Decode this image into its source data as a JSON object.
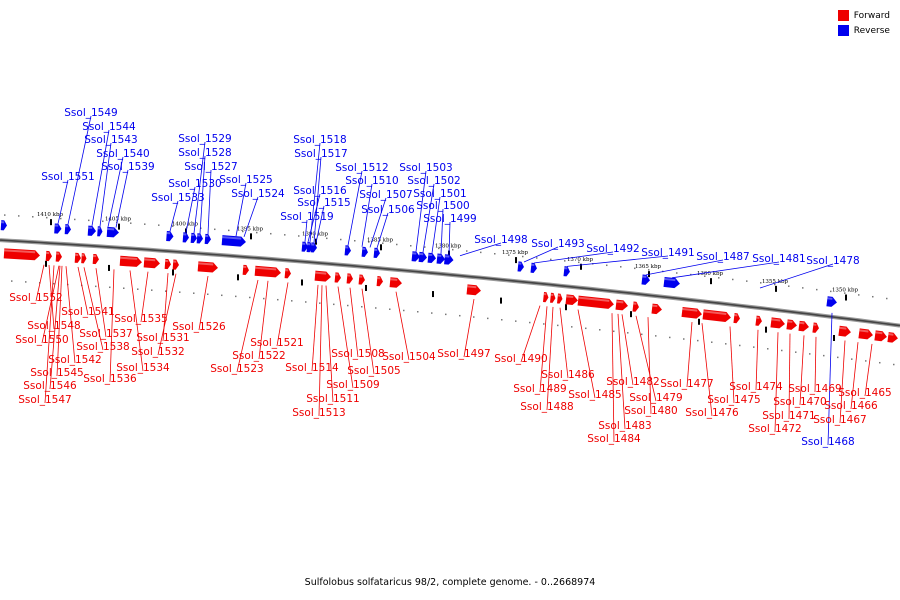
{
  "legend": {
    "forward": {
      "label": "Forward",
      "color": "#ee0000"
    },
    "reverse": {
      "label": "Reverse",
      "color": "#0000ee"
    }
  },
  "caption": "Sulfolobus solfataricus 98/2, complete genome. - 0..2668974",
  "ruler_ticks": [
    "1410 kbp",
    "1405 kbp",
    "1400 kbp",
    "1395 kbp",
    "1390 kbp",
    "1385 kbp",
    "1380 kbp",
    "1375 kbp",
    "1370 kbp",
    "1365 kbp",
    "1360 kbp",
    "1355 kbp",
    "1350 kbp"
  ],
  "reverse_genes": [
    "Ssol_1551",
    "Ssol_1549",
    "Ssol_1544",
    "Ssol_1543",
    "Ssol_1540",
    "Ssol_1539",
    "Ssol_1533",
    "Ssol_1530",
    "Ssol_1529",
    "Ssol_1528",
    "Ssol_1527",
    "Ssol_1525",
    "Ssol_1524",
    "Ssol_1519",
    "Ssol_1518",
    "Ssol_1517",
    "Ssol_1516",
    "Ssol_1515",
    "Ssol_1512",
    "Ssol_1510",
    "Ssol_1507",
    "Ssol_1506",
    "Ssol_1503",
    "Ssol_1502",
    "Ssol_1501",
    "Ssol_1500",
    "Ssol_1499",
    "Ssol_1498",
    "Ssol_1493",
    "Ssol_1492",
    "Ssol_1491",
    "Ssol_1487",
    "Ssol_1481",
    "Ssol_1478",
    "Ssol_1468"
  ],
  "forward_genes": [
    "Ssol_1552",
    "Ssol_1541",
    "Ssol_1548",
    "Ssol_1550",
    "Ssol_1537",
    "Ssol_1538",
    "Ssol_1542",
    "Ssol_1545",
    "Ssol_1546",
    "Ssol_1547",
    "Ssol_1536",
    "Ssol_1535",
    "Ssol_1531",
    "Ssol_1532",
    "Ssol_1534",
    "Ssol_1526",
    "Ssol_1522",
    "Ssol_1521",
    "Ssol_1523",
    "Ssol_1514",
    "Ssol_1508",
    "Ssol_1509",
    "Ssol_1511",
    "Ssol_1513",
    "Ssol_1505",
    "Ssol_1504",
    "Ssol_1497",
    "Ssol_1490",
    "Ssol_1489",
    "Ssol_1488",
    "Ssol_1486",
    "Ssol_1485",
    "Ssol_1482",
    "Ssol_1479",
    "Ssol_1480",
    "Ssol_1483",
    "Ssol_1484",
    "Ssol_1477",
    "Ssol_1476",
    "Ssol_1475",
    "Ssol_1474",
    "Ssol_1472",
    "Ssol_1471",
    "Ssol_1470",
    "Ssol_1469",
    "Ssol_1467",
    "Ssol_1466",
    "Ssol_1465"
  ]
}
